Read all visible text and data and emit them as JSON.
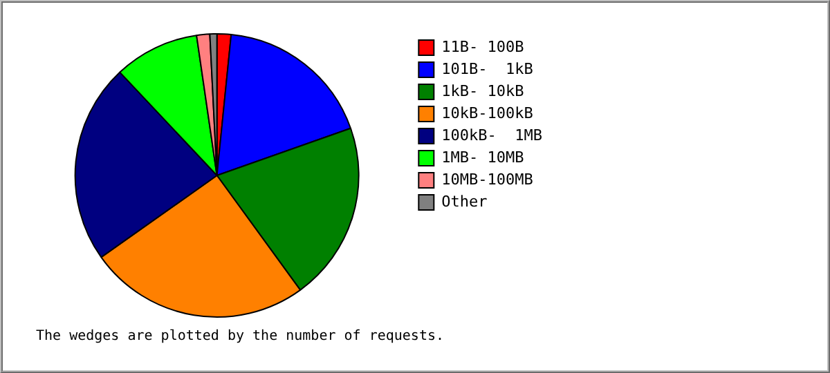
{
  "chart_data": {
    "type": "pie",
    "categories": [
      "11B- 100B",
      "101B-  1kB",
      "1kB- 10kB",
      "10kB-100kB",
      "100kB-  1MB",
      "1MB- 10MB",
      "10MB-100MB",
      "Other"
    ],
    "values": [
      1.6,
      18.0,
      20.4,
      25.2,
      22.8,
      9.7,
      1.5,
      0.8
    ],
    "colors": [
      "#ff0000",
      "#0000ff",
      "#008000",
      "#ff8000",
      "#000080",
      "#00ff00",
      "#ff8080",
      "#808080"
    ],
    "legend": "right",
    "annotations": [
      "The wedges are plotted by the number of requests."
    ]
  }
}
